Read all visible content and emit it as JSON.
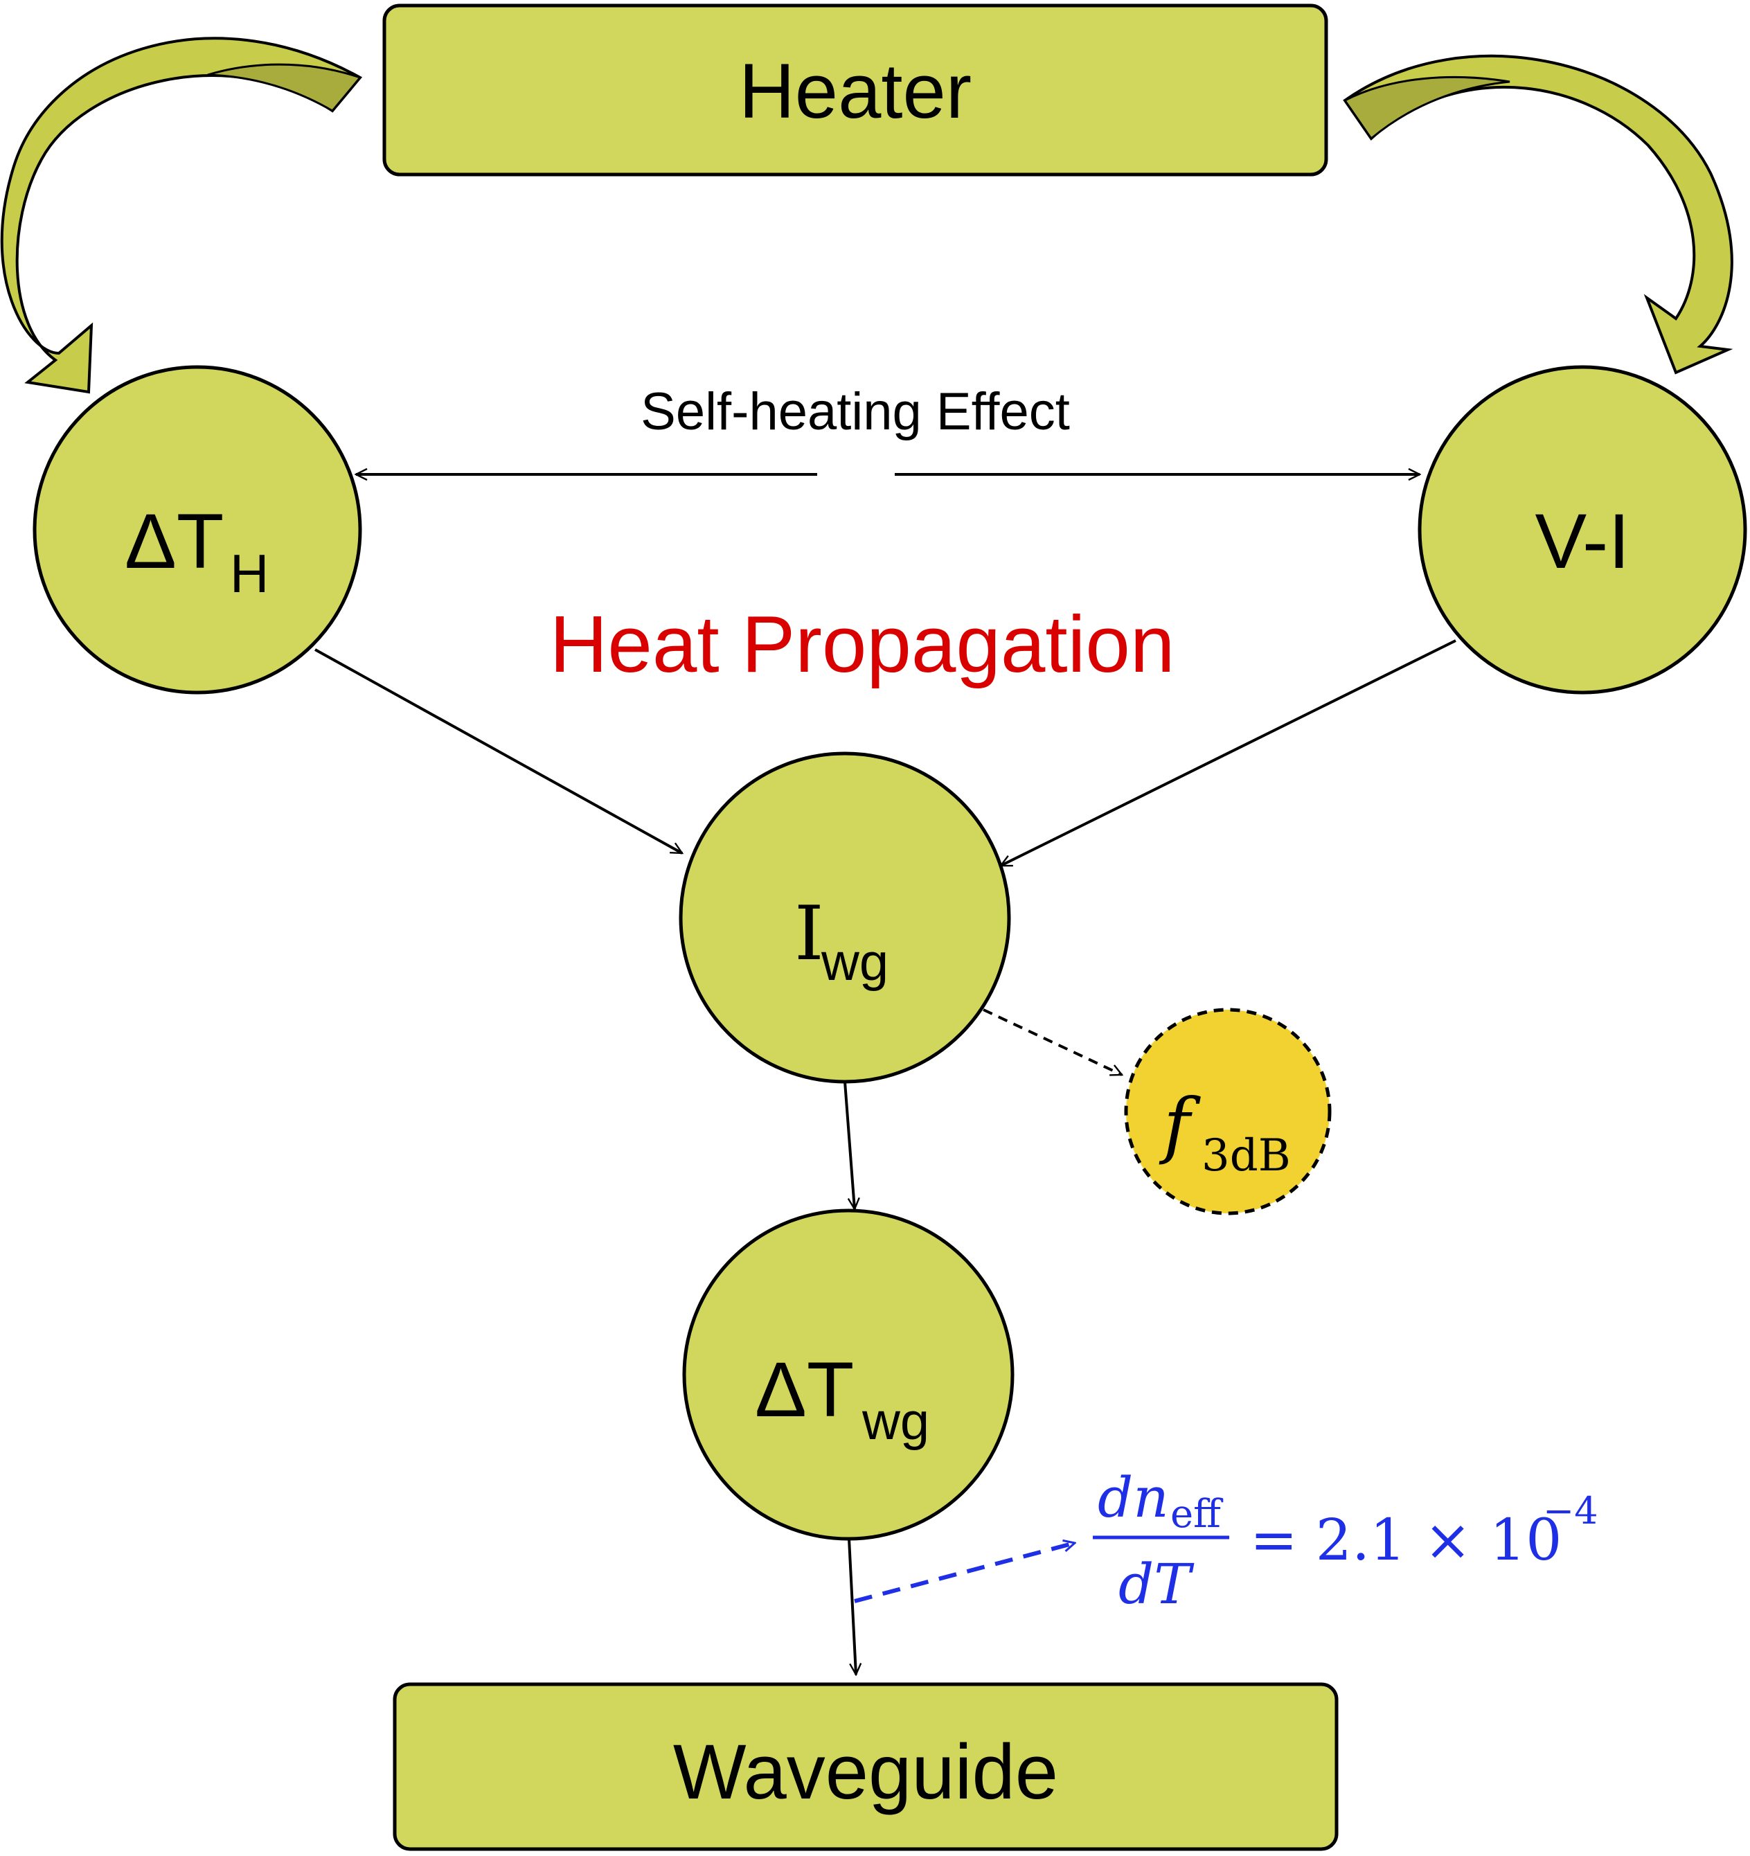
{
  "colors": {
    "node_fill": "#d1d65d",
    "node_fill_alt": "#f2d231",
    "curved_arrow_fill": "#c7cc4a",
    "curved_arrow_dark": "#a8ac3c",
    "stroke": "#000000",
    "title_red": "#d90000",
    "formula_blue": "#1f2fe6"
  },
  "labels": {
    "heater": "Heater",
    "waveguide": "Waveguide",
    "self_heating": "Self-heating Effect",
    "heat_propagation": "Heat Propagation"
  },
  "nodes": {
    "delta_t_h": {
      "main": "ΔT",
      "sub": "H"
    },
    "v_i": {
      "main": "V-I"
    },
    "i_wg": {
      "main": "I",
      "sub": "wg"
    },
    "delta_t_wg": {
      "main": "ΔT",
      "sub": "wg"
    },
    "f_3db": {
      "main": "f",
      "sub": "3dB"
    }
  },
  "formula": {
    "numerator_d": "dn",
    "numerator_sub": "eff",
    "denominator": "dT",
    "equals": "= 2.1 × 10",
    "exponent": "−4"
  }
}
